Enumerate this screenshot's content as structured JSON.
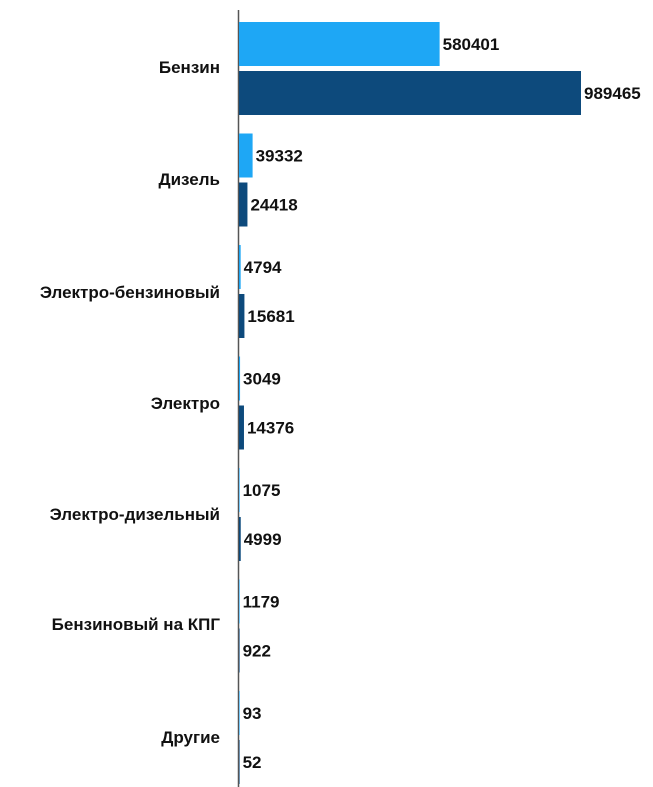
{
  "chart_data": {
    "type": "bar",
    "orientation": "horizontal",
    "categories": [
      "Бензин",
      "Дизель",
      "Электро-бензиновый",
      "Электро",
      "Электро-дизельный",
      "Бензиновый на КПГ",
      "Другие"
    ],
    "series": [
      {
        "color": "#1ea7f5",
        "values": [
          580401,
          39332,
          4794,
          3049,
          1075,
          1179,
          93
        ],
        "labels": [
          "580401",
          "39332",
          "4794",
          "3049",
          "1075",
          "1179",
          "93"
        ]
      },
      {
        "color": "#0d4a7c",
        "values": [
          989465,
          24418,
          15681,
          14376,
          4999,
          922,
          52
        ],
        "labels": [
          "989465",
          "24418",
          "15681",
          "14376",
          "4999",
          "922",
          "52"
        ]
      }
    ],
    "xlim": [
      0,
      989465
    ],
    "grid": false,
    "legend": "none",
    "axis_color": "#555555"
  }
}
